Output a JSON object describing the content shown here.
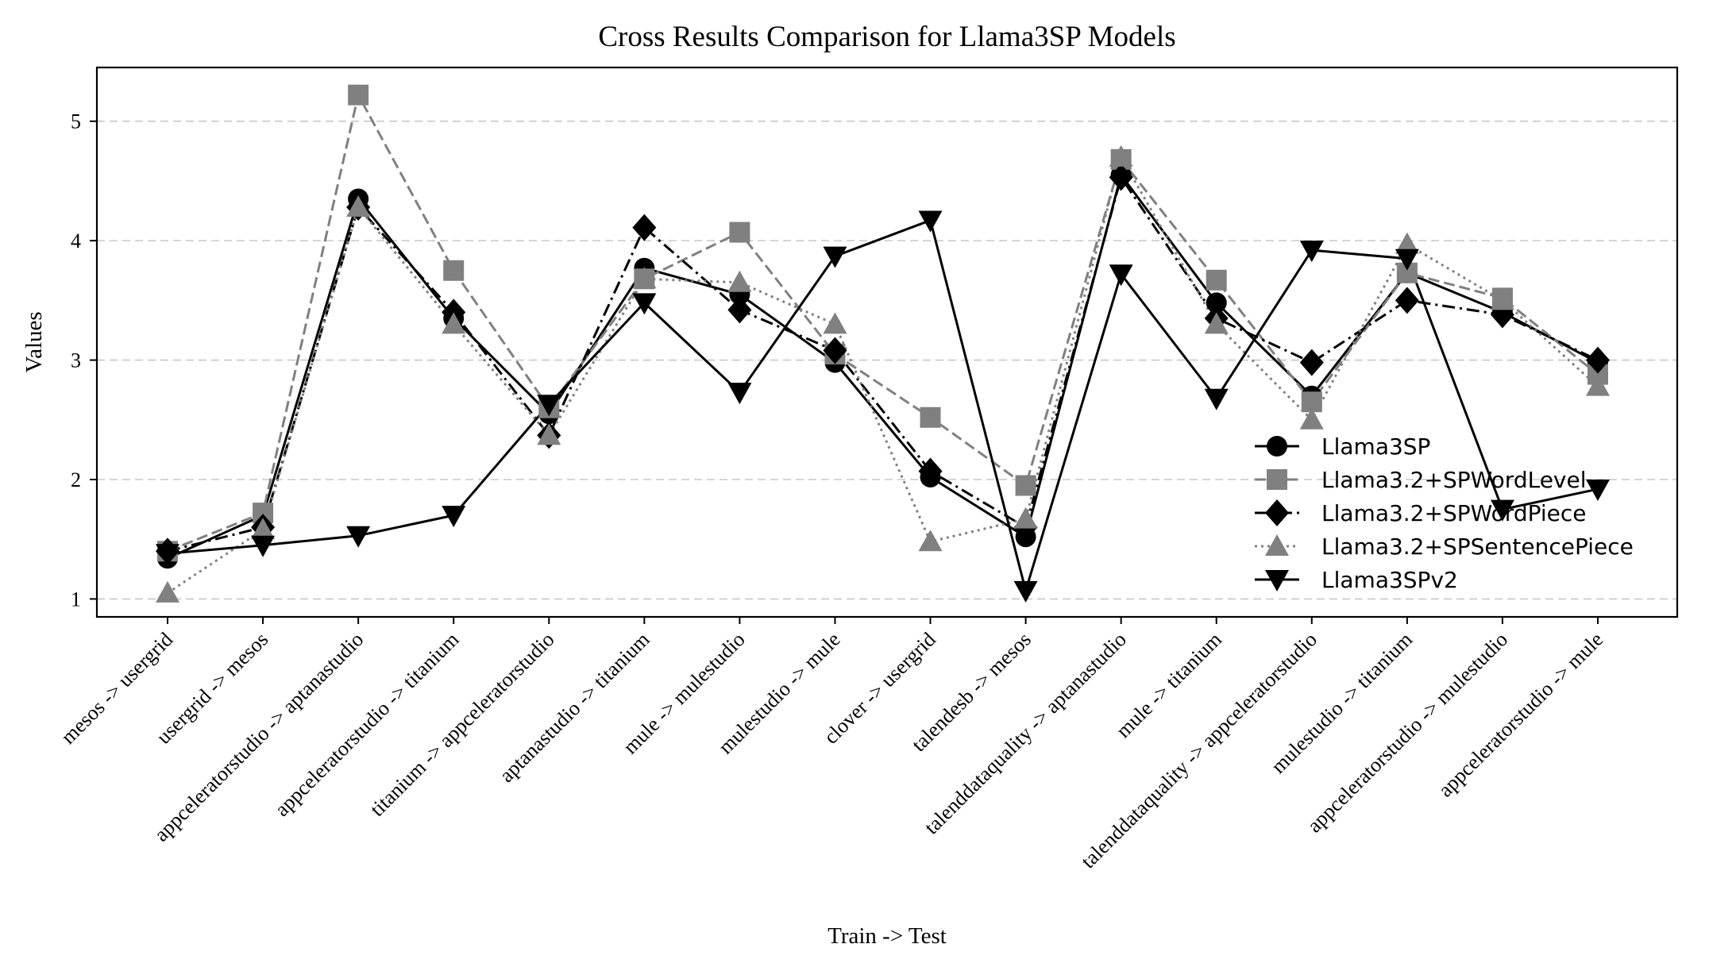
{
  "chart_data": {
    "type": "line",
    "title": "Cross Results Comparison for Llama3SP Models",
    "xlabel": "Train -> Test",
    "ylabel": "Values",
    "ylim": [
      0.85,
      5.45
    ],
    "yticks": [
      1,
      2,
      3,
      4,
      5
    ],
    "grid": "y-dashed",
    "legend_position": "lower-right",
    "categories": [
      "mesos -> usergrid",
      "usergrid -> mesos",
      "appceleratorstudio -> aptanastudio",
      "appceleratorstudio -> titanium",
      "titanium -> appceleratorstudio",
      "aptanastudio -> titanium",
      "mule -> mulestudio",
      "mulestudio -> mule",
      "clover -> usergrid",
      "talendesb -> mesos",
      "talenddataquality -> aptanastudio",
      "mule -> titanium",
      "talenddataquality -> appceleratorstudio",
      "mulestudio -> titanium",
      "appceleratorstudio -> mulestudio",
      "appceleratorstudio -> mule"
    ],
    "series": [
      {
        "name": "Llama3SP",
        "color": "#000000",
        "linestyle": "solid",
        "marker": "circle",
        "values": [
          1.34,
          1.7,
          4.35,
          3.35,
          2.55,
          3.77,
          3.55,
          2.98,
          2.02,
          1.52,
          4.55,
          3.48,
          2.7,
          3.73,
          3.4,
          2.98
        ]
      },
      {
        "name": "Llama3.2+SPWordLevel",
        "color": "#808080",
        "linestyle": "dashed",
        "marker": "square",
        "values": [
          1.4,
          1.72,
          5.22,
          3.75,
          2.6,
          3.68,
          4.07,
          3.05,
          2.52,
          1.95,
          4.68,
          3.67,
          2.65,
          3.73,
          3.52,
          2.88
        ]
      },
      {
        "name": "Llama3.2+SPWordPiece",
        "color": "#000000",
        "linestyle": "dashdot",
        "marker": "diamond",
        "values": [
          1.4,
          1.6,
          4.28,
          3.4,
          2.37,
          4.11,
          3.42,
          3.08,
          2.07,
          1.6,
          4.53,
          3.35,
          2.98,
          3.5,
          3.38,
          3.0
        ]
      },
      {
        "name": "Llama3.2+SPSentencePiece",
        "color": "#808080",
        "linestyle": "dotted",
        "marker": "triangle-up",
        "values": [
          1.05,
          1.58,
          4.28,
          3.3,
          2.37,
          3.68,
          3.65,
          3.3,
          1.48,
          1.67,
          4.7,
          3.3,
          2.5,
          3.97,
          3.5,
          2.78
        ]
      },
      {
        "name": "Llama3SPv2",
        "color": "#000000",
        "linestyle": "solid",
        "marker": "triangle-down",
        "values": [
          1.38,
          1.45,
          1.53,
          1.7,
          2.63,
          3.48,
          2.73,
          3.87,
          4.17,
          1.07,
          3.72,
          2.68,
          3.92,
          3.85,
          1.75,
          1.92
        ]
      }
    ]
  }
}
